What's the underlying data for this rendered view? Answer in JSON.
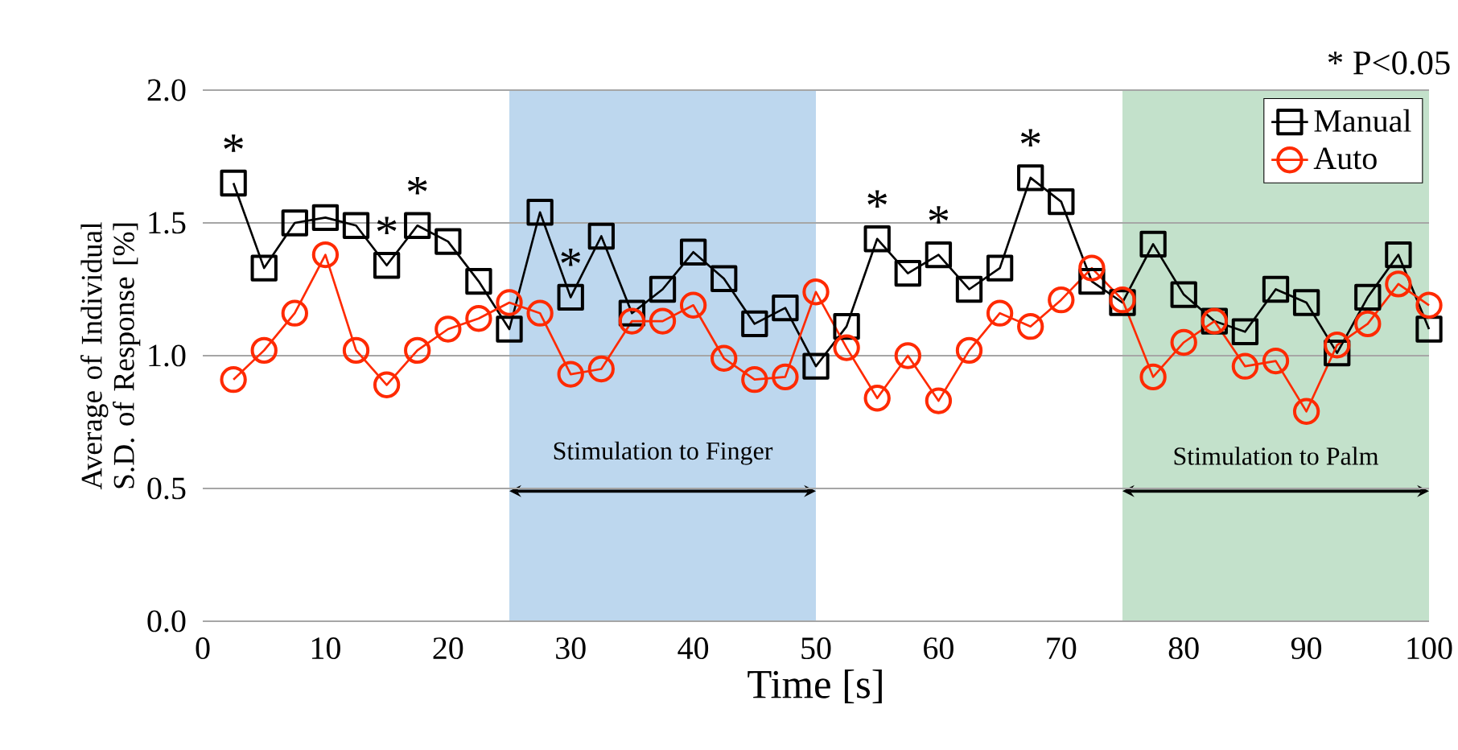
{
  "chart_data": {
    "type": "line",
    "xlabel": "Time [s]",
    "ylabel": "Average of Individual S.D. of Response [%]",
    "x": [
      2.5,
      5,
      7.5,
      10,
      12.5,
      15,
      17.5,
      20,
      22.5,
      25,
      27.5,
      30,
      32.5,
      35,
      37.5,
      40,
      42.5,
      45,
      47.5,
      50,
      52.5,
      55,
      57.5,
      60,
      62.5,
      65,
      67.5,
      70,
      72.5,
      75,
      77.5,
      80,
      82.5,
      85,
      87.5,
      90,
      92.5,
      95,
      97.5,
      100
    ],
    "series": [
      {
        "name": "Manual",
        "color": "#000000",
        "marker": "square",
        "values": [
          1.65,
          1.33,
          1.5,
          1.52,
          1.49,
          1.34,
          1.49,
          1.43,
          1.28,
          1.1,
          1.54,
          1.22,
          1.45,
          1.16,
          1.25,
          1.39,
          1.29,
          1.12,
          1.18,
          0.96,
          1.11,
          1.44,
          1.31,
          1.38,
          1.25,
          1.33,
          1.67,
          1.58,
          1.28,
          1.2,
          1.42,
          1.23,
          1.13,
          1.09,
          1.25,
          1.2,
          1.01,
          1.22,
          1.38,
          1.1
        ]
      },
      {
        "name": "Auto",
        "color": "#ff2a00",
        "marker": "circle",
        "values": [
          0.91,
          1.02,
          1.16,
          1.38,
          1.02,
          0.89,
          1.02,
          1.1,
          1.14,
          1.2,
          1.16,
          0.93,
          0.95,
          1.13,
          1.13,
          1.19,
          0.99,
          0.91,
          0.92,
          1.24,
          1.03,
          0.84,
          1.0,
          0.83,
          1.02,
          1.16,
          1.11,
          1.21,
          1.33,
          1.21,
          0.92,
          1.05,
          1.13,
          0.96,
          0.98,
          0.79,
          1.04,
          1.12,
          1.27,
          1.19
        ]
      }
    ],
    "xlim": [
      0,
      100
    ],
    "xticks": [
      0,
      10,
      20,
      30,
      40,
      50,
      60,
      70,
      80,
      90,
      100
    ],
    "ylim": [
      0,
      2.0
    ],
    "yticks": [
      {
        "value": 0,
        "label": "0.0"
      },
      {
        "value": 0.5,
        "label": "0.5"
      },
      {
        "value": 1.0,
        "label": "1.0"
      },
      {
        "value": 1.5,
        "label": "1.5"
      },
      {
        "value": 2.0,
        "label": "2.0"
      }
    ],
    "bands": [
      {
        "axis": "x",
        "from": 25,
        "to": 50,
        "label": "Stimulation to Finger",
        "color": "#bdd7ee"
      },
      {
        "axis": "x",
        "from": 75,
        "to": 100,
        "label": "Stimulation to Palm",
        "color": "#c3e1cb"
      }
    ],
    "annotations": [
      "* P<0.05",
      {
        "text": "*",
        "x": 2.5,
        "y": 1.65
      },
      {
        "text": "*",
        "x": 15,
        "y": 1.34
      },
      {
        "text": "*",
        "x": 17.5,
        "y": 1.49
      },
      {
        "text": "*",
        "x": 30,
        "y": 1.22
      },
      {
        "text": "*",
        "x": 55,
        "y": 1.44
      },
      {
        "text": "*",
        "x": 60,
        "y": 1.38
      },
      {
        "text": "*",
        "x": 67.5,
        "y": 1.67
      }
    ],
    "grid": "y",
    "legend": "top right"
  }
}
